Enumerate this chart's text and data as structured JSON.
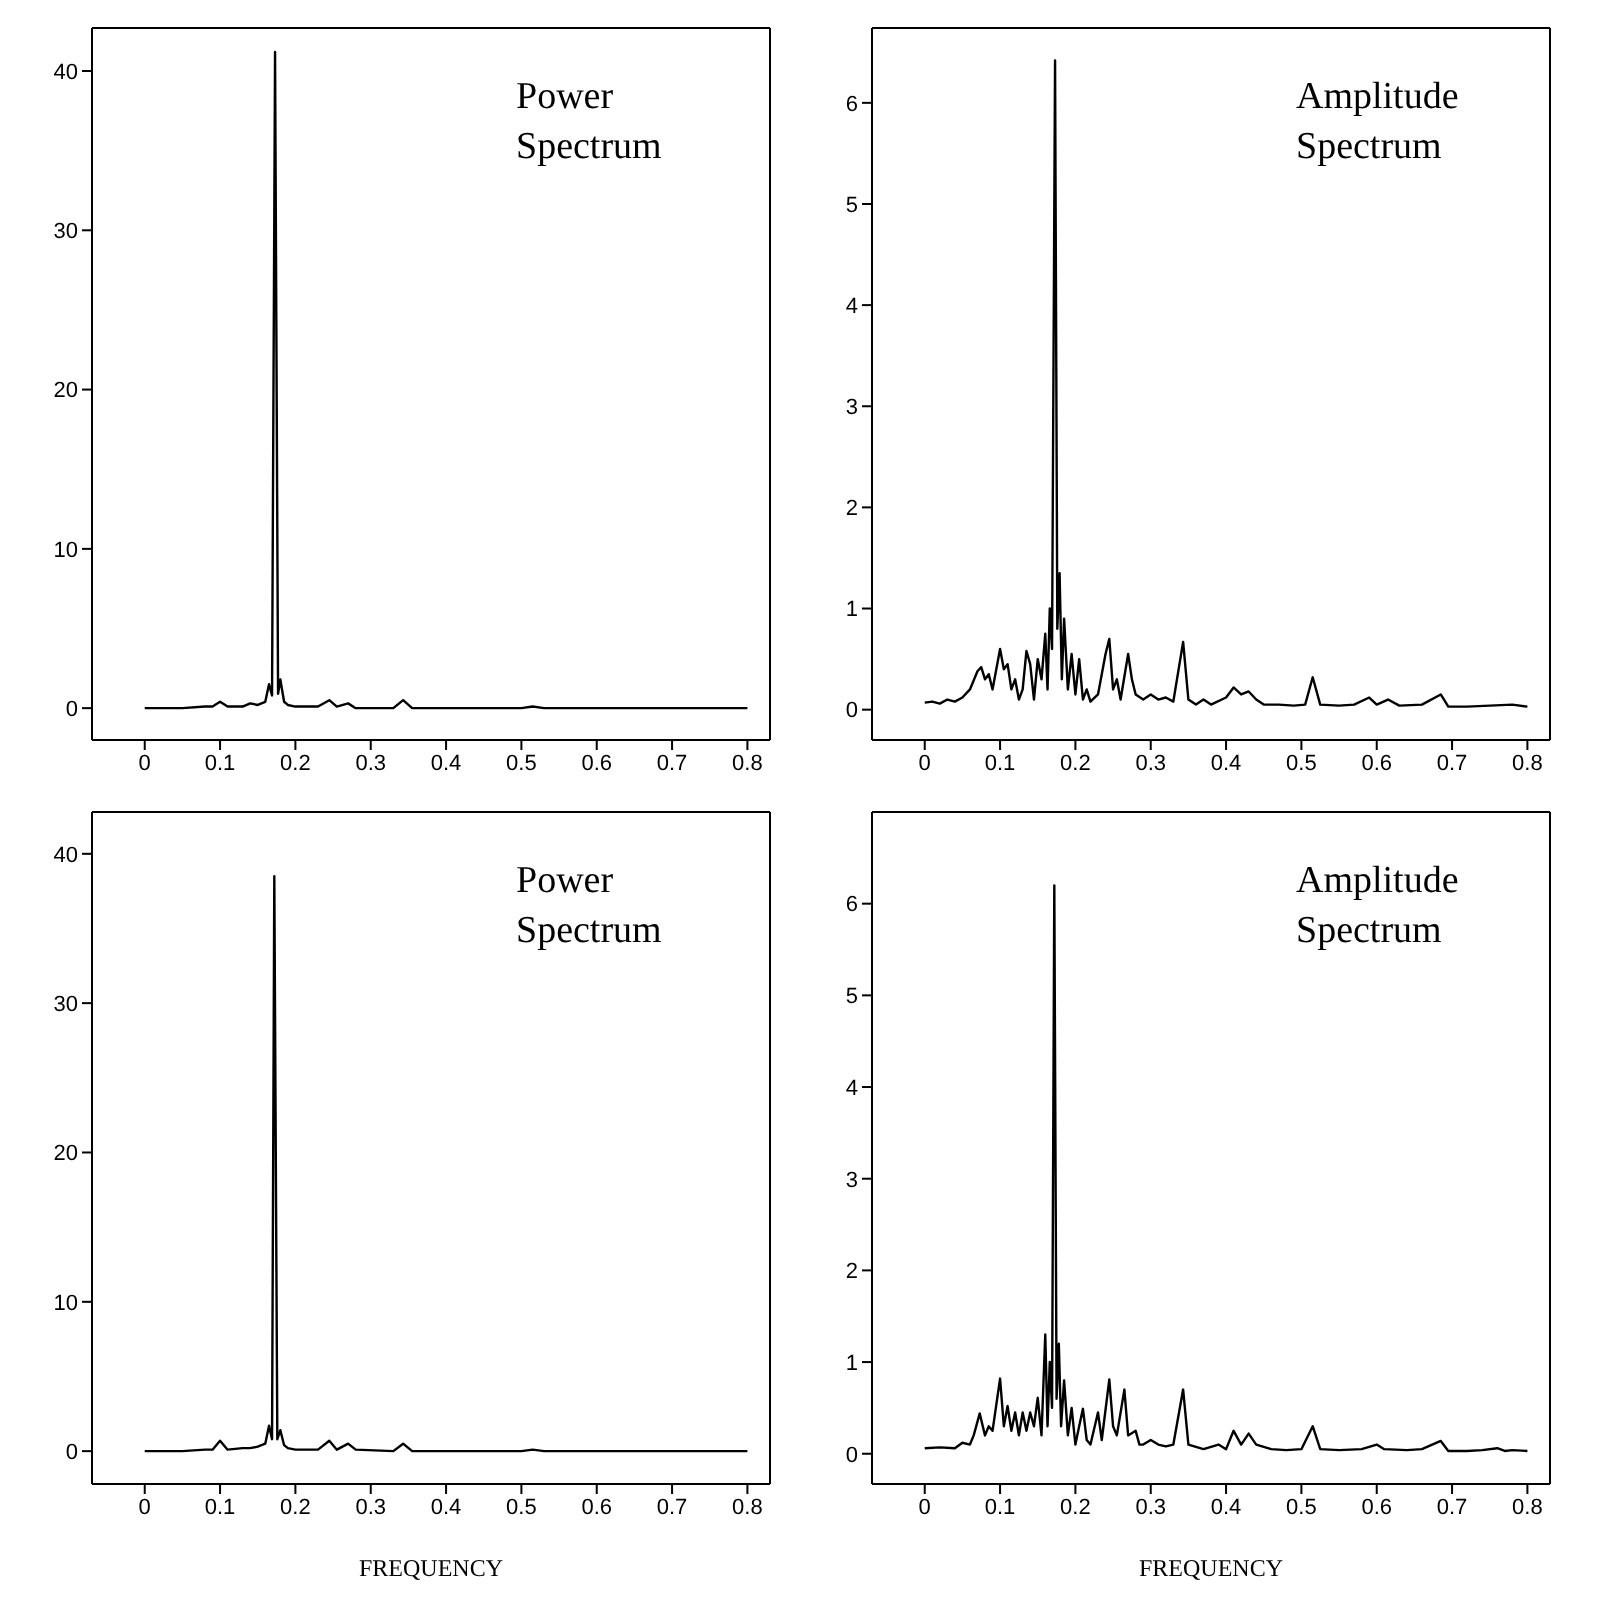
{
  "chart_data": [
    {
      "type": "line",
      "annotations": [
        "Power Spectrum"
      ],
      "xlim": [
        -0.07,
        0.83
      ],
      "xticks": [
        0,
        0.1,
        0.2,
        0.3,
        0.4,
        0.5,
        0.6,
        0.7,
        0.8
      ],
      "ylim": [
        -2,
        42.7
      ],
      "yticks": [
        0,
        10,
        20,
        30,
        40
      ],
      "marker": "none",
      "line_style": "solid",
      "series": [
        {
          "color": "#000000",
          "x": [
            0,
            0.05,
            0.08,
            0.09,
            0.1,
            0.11,
            0.13,
            0.14,
            0.15,
            0.16,
            0.165,
            0.169,
            0.173,
            0.177,
            0.18,
            0.185,
            0.19,
            0.2,
            0.23,
            0.245,
            0.255,
            0.27,
            0.28,
            0.33,
            0.343,
            0.355,
            0.5,
            0.515,
            0.53,
            0.8
          ],
          "values": [
            0,
            0,
            0.1,
            0.1,
            0.4,
            0.1,
            0.1,
            0.3,
            0.2,
            0.4,
            1.5,
            0.8,
            41.2,
            0.9,
            1.8,
            0.4,
            0.2,
            0.1,
            0.1,
            0.5,
            0.1,
            0.3,
            0,
            0,
            0.5,
            0,
            0,
            0.1,
            0,
            0
          ]
        }
      ]
    },
    {
      "type": "line",
      "annotations": [
        "Amplitude Spectrum"
      ],
      "xlim": [
        -0.07,
        0.83
      ],
      "xticks": [
        0,
        0.1,
        0.2,
        0.3,
        0.4,
        0.5,
        0.6,
        0.7,
        0.8
      ],
      "ylim": [
        -0.3,
        6.74
      ],
      "yticks": [
        0,
        1,
        2,
        3,
        4,
        5,
        6
      ],
      "marker": "none",
      "line_style": "solid",
      "series": [
        {
          "color": "#000000",
          "x": [
            0,
            0.01,
            0.02,
            0.03,
            0.04,
            0.05,
            0.06,
            0.07,
            0.075,
            0.08,
            0.085,
            0.09,
            0.1,
            0.105,
            0.11,
            0.115,
            0.12,
            0.125,
            0.13,
            0.135,
            0.14,
            0.145,
            0.15,
            0.155,
            0.16,
            0.163,
            0.166,
            0.169,
            0.173,
            0.176,
            0.179,
            0.182,
            0.185,
            0.19,
            0.195,
            0.2,
            0.205,
            0.21,
            0.215,
            0.22,
            0.23,
            0.24,
            0.245,
            0.25,
            0.255,
            0.26,
            0.27,
            0.275,
            0.28,
            0.29,
            0.3,
            0.31,
            0.32,
            0.33,
            0.343,
            0.35,
            0.36,
            0.37,
            0.38,
            0.4,
            0.41,
            0.42,
            0.43,
            0.44,
            0.45,
            0.47,
            0.49,
            0.505,
            0.515,
            0.525,
            0.55,
            0.57,
            0.59,
            0.6,
            0.615,
            0.63,
            0.66,
            0.685,
            0.695,
            0.72,
            0.75,
            0.78,
            0.8
          ],
          "values": [
            0.07,
            0.08,
            0.06,
            0.1,
            0.08,
            0.12,
            0.2,
            0.38,
            0.42,
            0.3,
            0.35,
            0.2,
            0.6,
            0.4,
            0.45,
            0.2,
            0.3,
            0.1,
            0.2,
            0.58,
            0.45,
            0.1,
            0.5,
            0.3,
            0.75,
            0.2,
            1.0,
            0.6,
            6.42,
            0.8,
            1.35,
            0.3,
            0.9,
            0.2,
            0.55,
            0.15,
            0.5,
            0.1,
            0.2,
            0.08,
            0.15,
            0.55,
            0.7,
            0.2,
            0.3,
            0.1,
            0.55,
            0.3,
            0.15,
            0.1,
            0.15,
            0.1,
            0.12,
            0.08,
            0.67,
            0.1,
            0.05,
            0.1,
            0.05,
            0.12,
            0.22,
            0.15,
            0.18,
            0.1,
            0.05,
            0.05,
            0.04,
            0.05,
            0.32,
            0.05,
            0.04,
            0.05,
            0.12,
            0.05,
            0.1,
            0.04,
            0.05,
            0.15,
            0.03,
            0.03,
            0.04,
            0.05,
            0.03
          ]
        }
      ]
    },
    {
      "type": "line",
      "annotations": [
        "Power Spectrum"
      ],
      "xlabel": "FREQUENCY",
      "xlim": [
        -0.07,
        0.83
      ],
      "xticks": [
        0,
        0.1,
        0.2,
        0.3,
        0.4,
        0.5,
        0.6,
        0.7,
        0.8
      ],
      "ylim": [
        -2.2,
        42.8
      ],
      "yticks": [
        0,
        10,
        20,
        30,
        40
      ],
      "marker": "none",
      "line_style": "solid",
      "series": [
        {
          "color": "#000000",
          "x": [
            0,
            0.05,
            0.08,
            0.09,
            0.1,
            0.11,
            0.13,
            0.14,
            0.15,
            0.16,
            0.165,
            0.169,
            0.172,
            0.176,
            0.18,
            0.185,
            0.19,
            0.2,
            0.23,
            0.245,
            0.255,
            0.27,
            0.28,
            0.33,
            0.343,
            0.355,
            0.5,
            0.515,
            0.53,
            0.8
          ],
          "values": [
            0,
            0,
            0.1,
            0.1,
            0.7,
            0.1,
            0.2,
            0.2,
            0.3,
            0.5,
            1.7,
            0.8,
            38.5,
            0.8,
            1.4,
            0.4,
            0.2,
            0.1,
            0.1,
            0.7,
            0.1,
            0.5,
            0.1,
            0,
            0.5,
            0,
            0,
            0.1,
            0,
            0
          ]
        }
      ]
    },
    {
      "type": "line",
      "annotations": [
        "Amplitude Spectrum"
      ],
      "xlabel": "FREQUENCY",
      "xlim": [
        -0.07,
        0.83
      ],
      "xticks": [
        0,
        0.1,
        0.2,
        0.3,
        0.4,
        0.5,
        0.6,
        0.7,
        0.8
      ],
      "ylim": [
        -0.33,
        7.0
      ],
      "yticks": [
        0,
        1,
        2,
        3,
        4,
        5,
        6
      ],
      "marker": "none",
      "line_style": "solid",
      "series": [
        {
          "color": "#000000",
          "x": [
            0,
            0.02,
            0.04,
            0.05,
            0.06,
            0.065,
            0.073,
            0.08,
            0.085,
            0.09,
            0.1,
            0.105,
            0.11,
            0.115,
            0.12,
            0.125,
            0.13,
            0.135,
            0.14,
            0.145,
            0.15,
            0.155,
            0.16,
            0.163,
            0.166,
            0.169,
            0.172,
            0.175,
            0.178,
            0.181,
            0.185,
            0.19,
            0.195,
            0.2,
            0.205,
            0.21,
            0.215,
            0.22,
            0.23,
            0.235,
            0.245,
            0.25,
            0.255,
            0.265,
            0.27,
            0.28,
            0.285,
            0.29,
            0.3,
            0.31,
            0.32,
            0.33,
            0.343,
            0.35,
            0.37,
            0.39,
            0.4,
            0.41,
            0.42,
            0.43,
            0.44,
            0.46,
            0.48,
            0.5,
            0.515,
            0.525,
            0.55,
            0.58,
            0.6,
            0.61,
            0.64,
            0.66,
            0.685,
            0.695,
            0.72,
            0.74,
            0.76,
            0.77,
            0.78,
            0.8
          ],
          "values": [
            0.06,
            0.07,
            0.06,
            0.12,
            0.1,
            0.2,
            0.44,
            0.2,
            0.3,
            0.25,
            0.82,
            0.3,
            0.52,
            0.25,
            0.45,
            0.2,
            0.45,
            0.25,
            0.45,
            0.3,
            0.61,
            0.2,
            1.3,
            0.3,
            1.0,
            0.5,
            6.2,
            0.6,
            1.2,
            0.3,
            0.8,
            0.2,
            0.5,
            0.1,
            0.3,
            0.49,
            0.15,
            0.1,
            0.45,
            0.15,
            0.81,
            0.3,
            0.2,
            0.7,
            0.2,
            0.25,
            0.1,
            0.1,
            0.15,
            0.1,
            0.08,
            0.1,
            0.7,
            0.1,
            0.05,
            0.1,
            0.05,
            0.25,
            0.1,
            0.22,
            0.1,
            0.05,
            0.04,
            0.05,
            0.3,
            0.05,
            0.04,
            0.05,
            0.1,
            0.05,
            0.04,
            0.05,
            0.14,
            0.03,
            0.03,
            0.04,
            0.06,
            0.03,
            0.04,
            0.03
          ]
        }
      ]
    }
  ]
}
